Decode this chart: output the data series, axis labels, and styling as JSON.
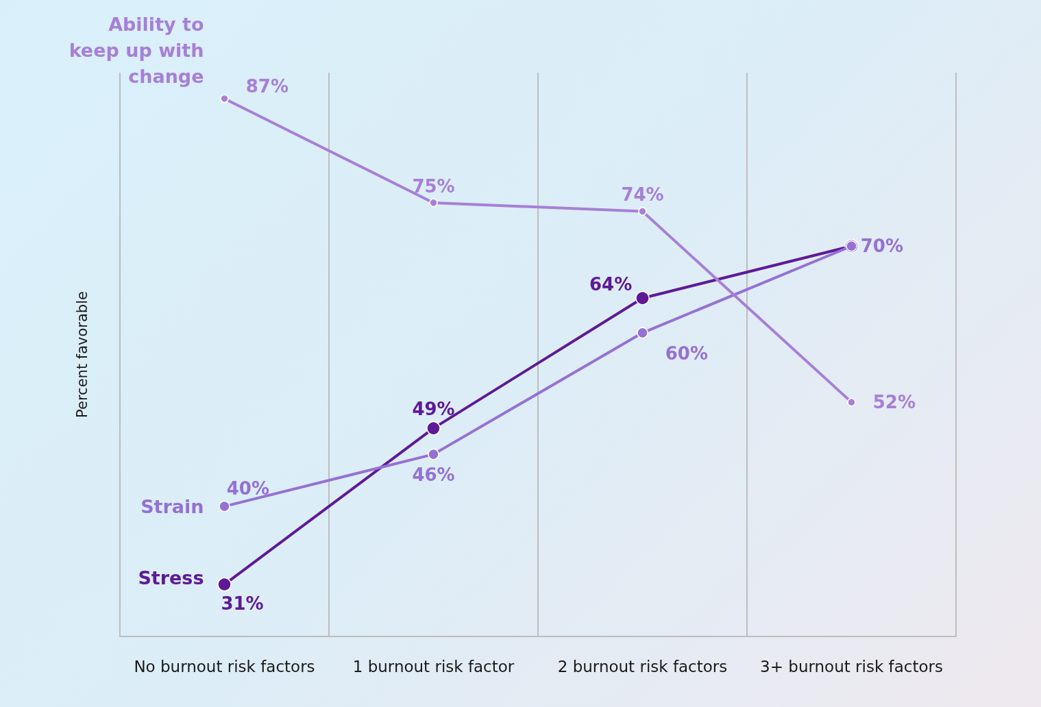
{
  "chart_data": {
    "type": "line",
    "ylabel": "Percent favorable",
    "categories": [
      "No burnout risk factors",
      "1 burnout risk factor",
      "2 burnout risk factors",
      "3+ burnout risk factors"
    ],
    "series": [
      {
        "name": "Ability to keep up with change",
        "color": "#a77fd6",
        "values": [
          87,
          75,
          74,
          52
        ],
        "value_labels": [
          "87%",
          "75%",
          "74%",
          "52%"
        ]
      },
      {
        "name": "Strain",
        "color": "#9571d3",
        "values": [
          40,
          46,
          60,
          70
        ],
        "value_labels": [
          "40%",
          "46%",
          "60%",
          "70%"
        ]
      },
      {
        "name": "Stress",
        "color": "#5e1a96",
        "values": [
          31,
          49,
          64,
          70
        ],
        "value_labels": [
          "31%",
          "49%",
          "64%",
          null
        ]
      }
    ],
    "ylim": [
      25,
      90
    ],
    "tick_labels": "x",
    "grid": "x",
    "legend": false,
    "marker": "circle",
    "line_style": "solid"
  }
}
